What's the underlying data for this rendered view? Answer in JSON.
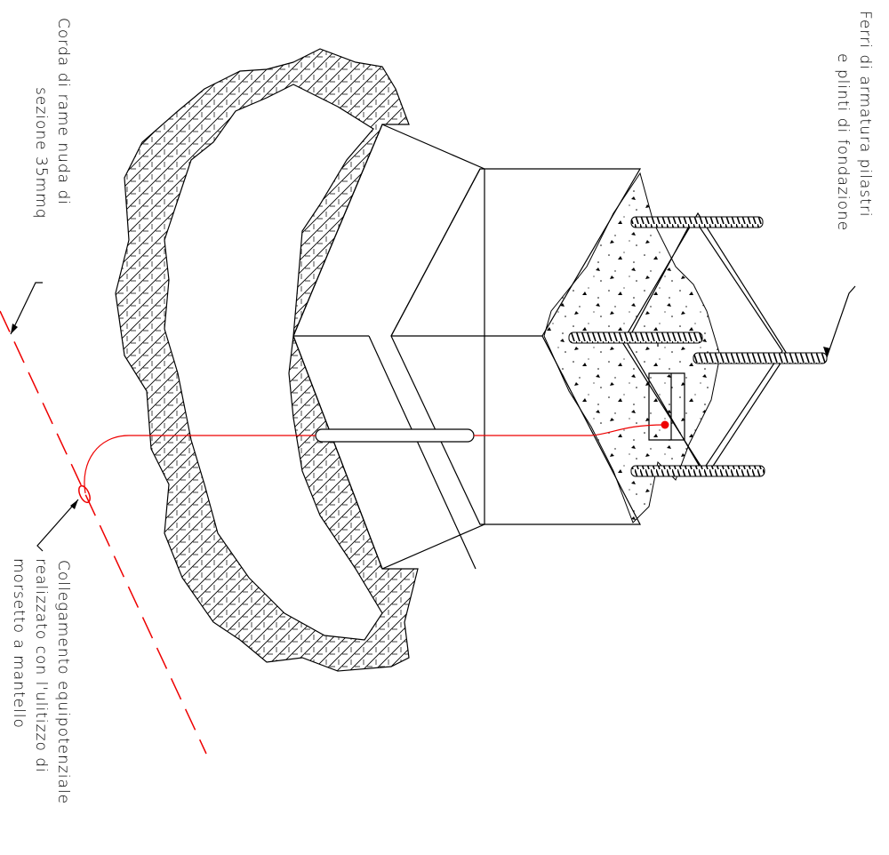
{
  "labels": {
    "rebar": {
      "lines": [
        "Ferri di armatura pilastri",
        "e plinti di fondazione"
      ]
    },
    "copper_rope": {
      "lines": [
        "Corda di rame nuda di",
        "sezione 35mmq"
      ]
    },
    "connection": {
      "lines": [
        "Collegamento equipotenziale",
        "realizzato con l'ulitizzo di",
        "morsetto a mantello"
      ]
    }
  }
}
